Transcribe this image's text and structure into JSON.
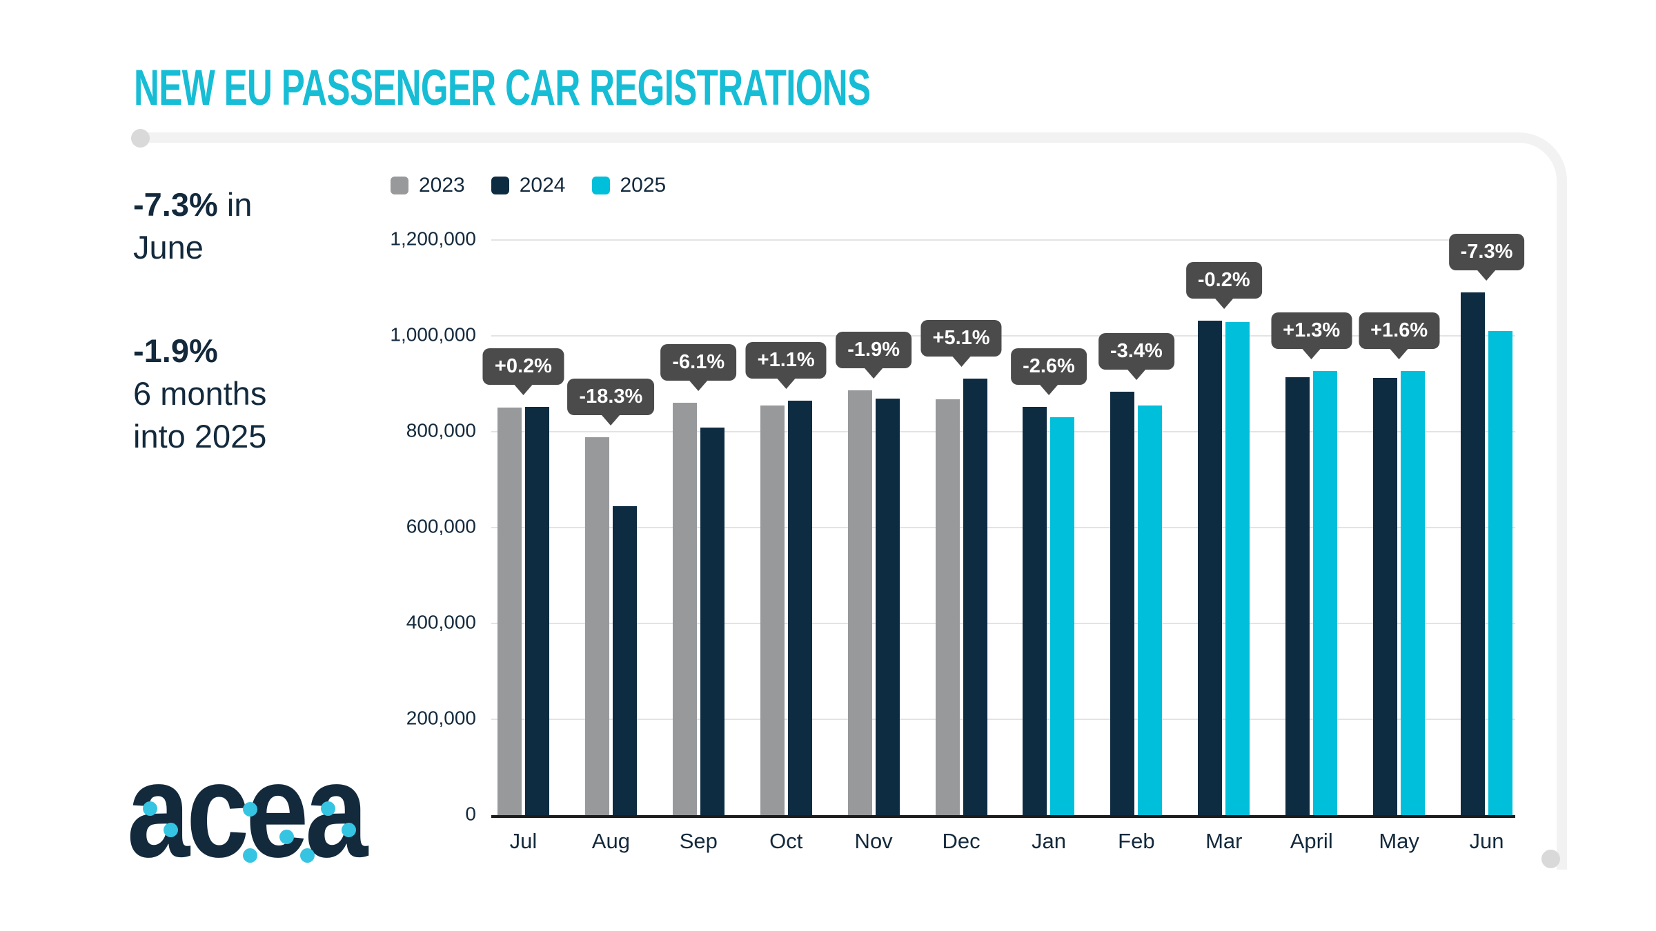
{
  "header": {
    "title": "NEW EU PASSENGER CAR REGISTRATIONS"
  },
  "highlights": [
    {
      "value": "-7.3%",
      "text": " in\nJune"
    },
    {
      "value": "-1.9%",
      "text": "\n6 months\ninto 2025"
    }
  ],
  "logo": {
    "text": "acea"
  },
  "colors": {
    "accent": "#16bdd5",
    "text_dark": "#13293c",
    "callout_bg": "#4b4b4b",
    "grid": "#e3e3e3",
    "axis_line": "#1c1c1c",
    "frame": "#f2f2f2",
    "frame_dot": "#d9d9d9",
    "logo_dot": "#35c5e3"
  },
  "chart_data": {
    "type": "bar",
    "title": "NEW EU PASSENGER CAR REGISTRATIONS",
    "categories": [
      "Jul",
      "Aug",
      "Sep",
      "Oct",
      "Nov",
      "Dec",
      "Jan",
      "Feb",
      "Mar",
      "April",
      "May",
      "Jun"
    ],
    "series": [
      {
        "name": "2023",
        "color": "#97999b",
        "values": [
          850000,
          788000,
          861000,
          855000,
          886000,
          867000,
          null,
          null,
          null,
          null,
          null,
          null
        ]
      },
      {
        "name": "2024",
        "color": "#0d2c42",
        "values": [
          852000,
          644000,
          809000,
          865000,
          869000,
          911000,
          852000,
          884000,
          1031000,
          914000,
          912000,
          1090000
        ]
      },
      {
        "name": "2025",
        "color": "#00bfda",
        "values": [
          null,
          null,
          null,
          null,
          null,
          null,
          830000,
          854000,
          1029000,
          926000,
          927000,
          1010000
        ]
      }
    ],
    "callouts": [
      "+0.2%",
      "-18.3%",
      "-6.1%",
      "+1.1%",
      "-1.9%",
      "+5.1%",
      "-2.6%",
      "-3.4%",
      "-0.2%",
      "+1.3%",
      "+1.6%",
      "-7.3%"
    ],
    "xlabel": "",
    "ylabel": "",
    "ylim": [
      0,
      1200000
    ],
    "yticks": [
      0,
      200000,
      400000,
      600000,
      800000,
      1000000,
      1200000
    ],
    "ytick_labels": [
      "0",
      "200,000",
      "400,000",
      "600,000",
      "800,000",
      "1,000,000",
      "1,200,000"
    ],
    "grid": true,
    "legend_position": "top-left"
  }
}
